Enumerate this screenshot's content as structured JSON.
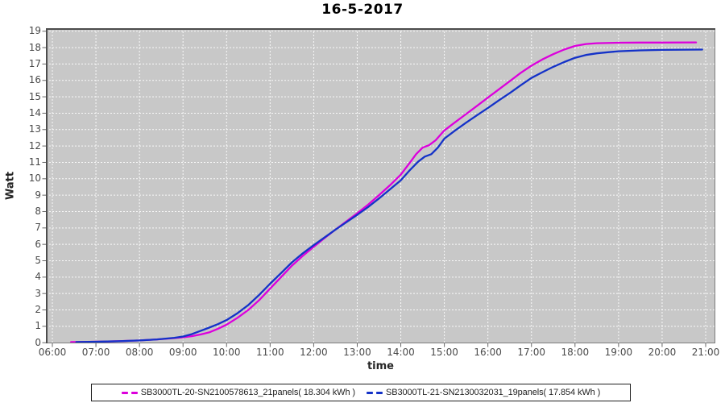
{
  "title": "16-5-2017",
  "chart_data": {
    "type": "line",
    "title": "16-5-2017",
    "xlabel": "time",
    "ylabel": "Watt",
    "x_range_hours": [
      6,
      21
    ],
    "ylim": [
      0,
      19
    ],
    "grid": true,
    "legend_position": "bottom",
    "plot_bg_color": "#c8c8c8",
    "grid_color": "#ffffff",
    "axis_tick_color": "#666666",
    "tick_label_color": "#4a4a4a",
    "y_ticks": [
      0,
      1,
      2,
      3,
      4,
      5,
      6,
      7,
      8,
      9,
      10,
      11,
      12,
      13,
      14,
      15,
      16,
      17,
      18,
      19
    ],
    "x_ticks": [
      {
        "hour": 6,
        "label": "06:00"
      },
      {
        "hour": 7,
        "label": "07:00"
      },
      {
        "hour": 8,
        "label": "08:00"
      },
      {
        "hour": 9,
        "label": "09:00"
      },
      {
        "hour": 10,
        "label": "10:00"
      },
      {
        "hour": 11,
        "label": "11:00"
      },
      {
        "hour": 12,
        "label": "12:00"
      },
      {
        "hour": 13,
        "label": "13:00"
      },
      {
        "hour": 14,
        "label": "14:00"
      },
      {
        "hour": 15,
        "label": "15:00"
      },
      {
        "hour": 16,
        "label": "16:00"
      },
      {
        "hour": 17,
        "label": "17:00"
      },
      {
        "hour": 18,
        "label": "18:00"
      },
      {
        "hour": 19,
        "label": "19:00"
      },
      {
        "hour": 20,
        "label": "20:00"
      },
      {
        "hour": 21,
        "label": "21:00"
      }
    ],
    "series": [
      {
        "name": "SB3000TL-20-SN2100578613_21panels( 18.304 kWh )",
        "color": "#dc00dc",
        "points": [
          [
            6.43,
            0.04
          ],
          [
            6.8,
            0.05
          ],
          [
            7.2,
            0.07
          ],
          [
            7.6,
            0.1
          ],
          [
            8.0,
            0.14
          ],
          [
            8.4,
            0.2
          ],
          [
            8.8,
            0.28
          ],
          [
            9.0,
            0.33
          ],
          [
            9.2,
            0.4
          ],
          [
            9.4,
            0.5
          ],
          [
            9.6,
            0.63
          ],
          [
            9.8,
            0.85
          ],
          [
            10.0,
            1.1
          ],
          [
            10.25,
            1.52
          ],
          [
            10.5,
            2.0
          ],
          [
            10.75,
            2.6
          ],
          [
            11.0,
            3.3
          ],
          [
            11.25,
            4.0
          ],
          [
            11.5,
            4.7
          ],
          [
            11.75,
            5.3
          ],
          [
            12.0,
            5.85
          ],
          [
            12.25,
            6.38
          ],
          [
            12.5,
            6.9
          ],
          [
            12.75,
            7.4
          ],
          [
            13.0,
            7.9
          ],
          [
            13.25,
            8.42
          ],
          [
            13.5,
            9.0
          ],
          [
            13.75,
            9.6
          ],
          [
            14.0,
            10.25
          ],
          [
            14.2,
            10.95
          ],
          [
            14.35,
            11.5
          ],
          [
            14.5,
            11.9
          ],
          [
            14.65,
            12.05
          ],
          [
            14.8,
            12.35
          ],
          [
            15.0,
            12.95
          ],
          [
            15.25,
            13.45
          ],
          [
            15.5,
            13.95
          ],
          [
            15.75,
            14.45
          ],
          [
            16.0,
            14.95
          ],
          [
            16.25,
            15.45
          ],
          [
            16.5,
            15.95
          ],
          [
            16.75,
            16.45
          ],
          [
            17.0,
            16.9
          ],
          [
            17.25,
            17.28
          ],
          [
            17.5,
            17.6
          ],
          [
            17.75,
            17.88
          ],
          [
            18.0,
            18.1
          ],
          [
            18.25,
            18.22
          ],
          [
            18.5,
            18.27
          ],
          [
            19.0,
            18.3
          ],
          [
            19.5,
            18.31
          ],
          [
            20.0,
            18.31
          ],
          [
            20.78,
            18.32
          ]
        ]
      },
      {
        "name": "SB3000TL-21-SN2130032031_19panels( 17.854 kWh )",
        "color": "#1432c8",
        "points": [
          [
            6.55,
            0.04
          ],
          [
            7.0,
            0.06
          ],
          [
            7.5,
            0.09
          ],
          [
            8.0,
            0.14
          ],
          [
            8.4,
            0.2
          ],
          [
            8.8,
            0.3
          ],
          [
            9.0,
            0.38
          ],
          [
            9.2,
            0.52
          ],
          [
            9.4,
            0.72
          ],
          [
            9.6,
            0.92
          ],
          [
            9.8,
            1.13
          ],
          [
            10.0,
            1.38
          ],
          [
            10.25,
            1.8
          ],
          [
            10.5,
            2.3
          ],
          [
            10.75,
            2.92
          ],
          [
            11.0,
            3.6
          ],
          [
            11.25,
            4.25
          ],
          [
            11.5,
            4.9
          ],
          [
            11.75,
            5.45
          ],
          [
            12.0,
            5.95
          ],
          [
            12.25,
            6.42
          ],
          [
            12.5,
            6.9
          ],
          [
            12.75,
            7.35
          ],
          [
            13.0,
            7.8
          ],
          [
            13.25,
            8.28
          ],
          [
            13.5,
            8.8
          ],
          [
            13.75,
            9.35
          ],
          [
            14.0,
            9.9
          ],
          [
            14.2,
            10.5
          ],
          [
            14.4,
            11.05
          ],
          [
            14.55,
            11.35
          ],
          [
            14.7,
            11.5
          ],
          [
            14.85,
            11.9
          ],
          [
            15.0,
            12.45
          ],
          [
            15.25,
            12.95
          ],
          [
            15.5,
            13.42
          ],
          [
            15.75,
            13.88
          ],
          [
            16.0,
            14.32
          ],
          [
            16.25,
            14.78
          ],
          [
            16.5,
            15.22
          ],
          [
            16.75,
            15.7
          ],
          [
            17.0,
            16.15
          ],
          [
            17.25,
            16.5
          ],
          [
            17.5,
            16.83
          ],
          [
            17.75,
            17.12
          ],
          [
            18.0,
            17.38
          ],
          [
            18.25,
            17.55
          ],
          [
            18.5,
            17.65
          ],
          [
            18.75,
            17.72
          ],
          [
            19.0,
            17.78
          ],
          [
            19.5,
            17.83
          ],
          [
            20.0,
            17.86
          ],
          [
            20.92,
            17.88
          ]
        ]
      }
    ]
  }
}
